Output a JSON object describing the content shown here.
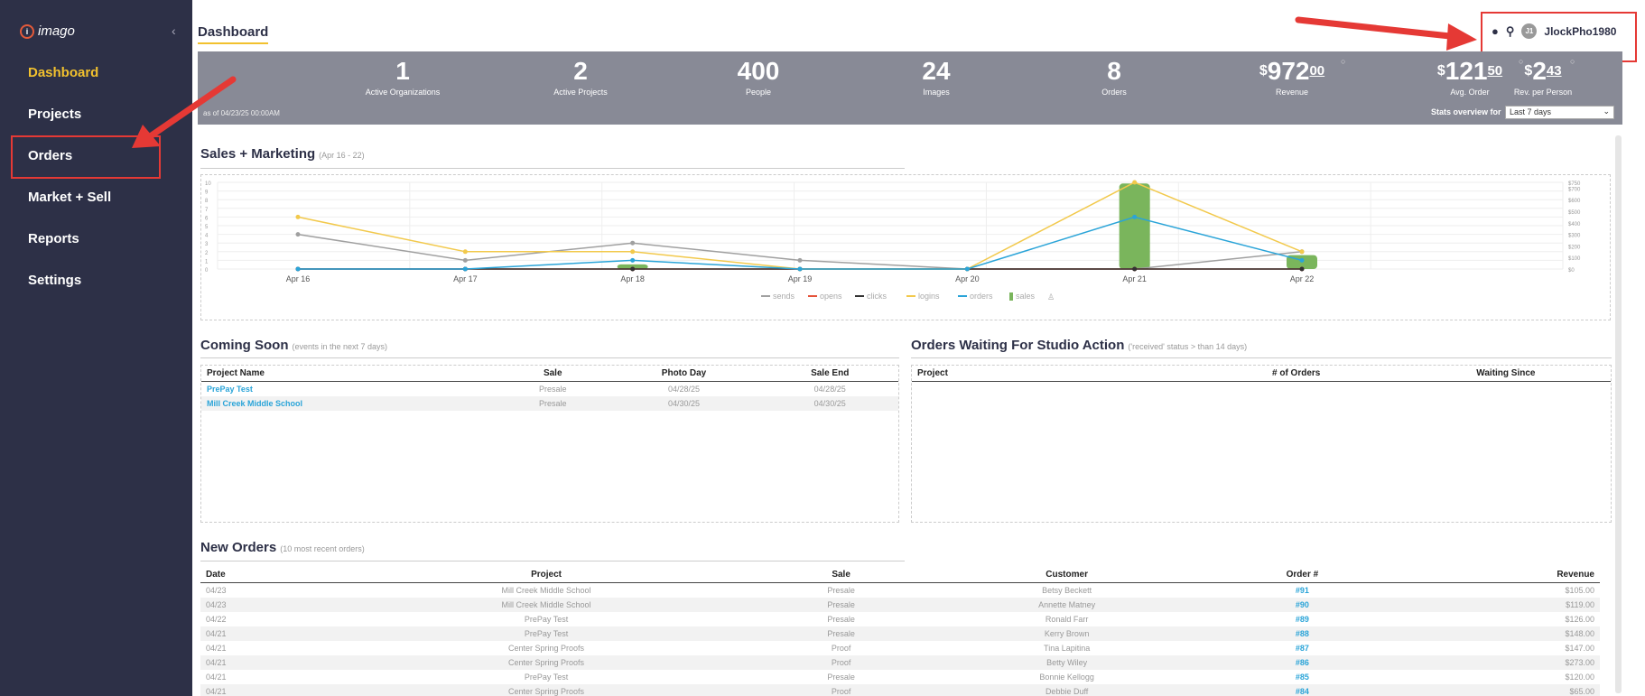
{
  "sidebar": {
    "logo_text": "imago",
    "items": [
      {
        "label": "Dashboard",
        "active": true
      },
      {
        "label": "Projects"
      },
      {
        "label": "Orders"
      },
      {
        "label": "Market + Sell"
      },
      {
        "label": "Reports"
      },
      {
        "label": "Settings"
      }
    ]
  },
  "header": {
    "title": "Dashboard",
    "user_initials": "J1",
    "username": "JlockPho1980"
  },
  "stats": {
    "items": [
      {
        "value": "1",
        "label": "Active Organizations"
      },
      {
        "value": "2",
        "label": "Active Projects"
      },
      {
        "value": "400",
        "label": "People"
      },
      {
        "value": "24",
        "label": "Images"
      },
      {
        "value": "8",
        "label": "Orders"
      },
      {
        "currency": "$",
        "value": "972",
        "cents": "00",
        "label": "Revenue"
      },
      {
        "currency": "$",
        "value": "121",
        "cents": "50",
        "label": "Avg. Order"
      },
      {
        "currency": "$",
        "value": "2",
        "cents": "43",
        "label": "Rev. per Person"
      }
    ],
    "as_of": "as of 04/23/25 00:00AM",
    "overview_label": "Stats overview for",
    "overview_value": "Last 7 days"
  },
  "sales_marketing": {
    "title": "Sales + Marketing",
    "subtitle": "(Apr 16 - 22)"
  },
  "chart_data": {
    "type": "line",
    "categories": [
      "Apr 16",
      "Apr 17",
      "Apr 18",
      "Apr 19",
      "Apr 20",
      "Apr 21",
      "Apr 22"
    ],
    "ylim_left": [
      0,
      10
    ],
    "left_ticks": [
      "10",
      "9",
      "8",
      "7",
      "6",
      "5",
      "4",
      "3",
      "2",
      "1",
      "0"
    ],
    "ylim_right": [
      0,
      750
    ],
    "right_ticks": [
      "$750",
      "$700",
      "$600",
      "$500",
      "$400",
      "$300",
      "$200",
      "$100",
      "$0"
    ],
    "series": [
      {
        "name": "sends",
        "color": "#a0a0a0",
        "values": [
          4,
          1,
          3,
          1,
          0,
          0,
          2
        ]
      },
      {
        "name": "opens",
        "color": "#e5533a",
        "values": [
          0,
          0,
          0,
          0,
          0,
          0,
          0
        ]
      },
      {
        "name": "clicks",
        "color": "#333333",
        "values": [
          0,
          0,
          0,
          0,
          0,
          0,
          0
        ]
      },
      {
        "name": "logins",
        "color": "#f2c94c",
        "values": [
          6,
          2,
          2,
          0,
          0,
          10,
          2
        ]
      },
      {
        "name": "orders",
        "color": "#2aa4d8",
        "values": [
          0,
          0,
          1,
          0,
          0,
          6,
          1
        ]
      }
    ],
    "bars": {
      "name": "sales",
      "color": "#7ab55c",
      "values": [
        0,
        0,
        40,
        0,
        0,
        740,
        120
      ]
    },
    "grid": true,
    "legend": "bottom"
  },
  "coming_soon": {
    "title": "Coming Soon",
    "subtitle": "(events in the next 7 days)",
    "columns": [
      "Project Name",
      "Sale",
      "Photo Day",
      "Sale End"
    ],
    "rows": [
      [
        "PrePay Test",
        "Presale",
        "04/28/25",
        "04/28/25"
      ],
      [
        "Mill Creek Middle School",
        "Presale",
        "04/30/25",
        "04/30/25"
      ]
    ]
  },
  "orders_waiting": {
    "title": "Orders Waiting For Studio Action",
    "subtitle": "('received' status > than 14 days)",
    "columns": [
      "Project",
      "# of Orders",
      "Waiting Since"
    ]
  },
  "new_orders": {
    "title": "New Orders",
    "subtitle": "(10 most recent orders)",
    "columns": [
      "Date",
      "Project",
      "Sale",
      "Customer",
      "Order #",
      "Revenue"
    ],
    "rows": [
      [
        "04/23",
        "Mill Creek Middle School",
        "Presale",
        "Betsy Beckett",
        "#91",
        "$105.00"
      ],
      [
        "04/23",
        "Mill Creek Middle School",
        "Presale",
        "Annette Matney",
        "#90",
        "$119.00"
      ],
      [
        "04/22",
        "PrePay Test",
        "Presale",
        "Ronald Farr",
        "#89",
        "$126.00"
      ],
      [
        "04/21",
        "PrePay Test",
        "Presale",
        "Kerry Brown",
        "#88",
        "$148.00"
      ],
      [
        "04/21",
        "Center Spring Proofs",
        "Proof",
        "Tina Lapitina",
        "#87",
        "$147.00"
      ],
      [
        "04/21",
        "Center Spring Proofs",
        "Proof",
        "Betty Wiley",
        "#86",
        "$273.00"
      ],
      [
        "04/21",
        "PrePay Test",
        "Presale",
        "Bonnie Kellogg",
        "#85",
        "$120.00"
      ],
      [
        "04/21",
        "Center Spring Proofs",
        "Proof",
        "Debbie Duff",
        "#84",
        "$65.00"
      ]
    ]
  }
}
